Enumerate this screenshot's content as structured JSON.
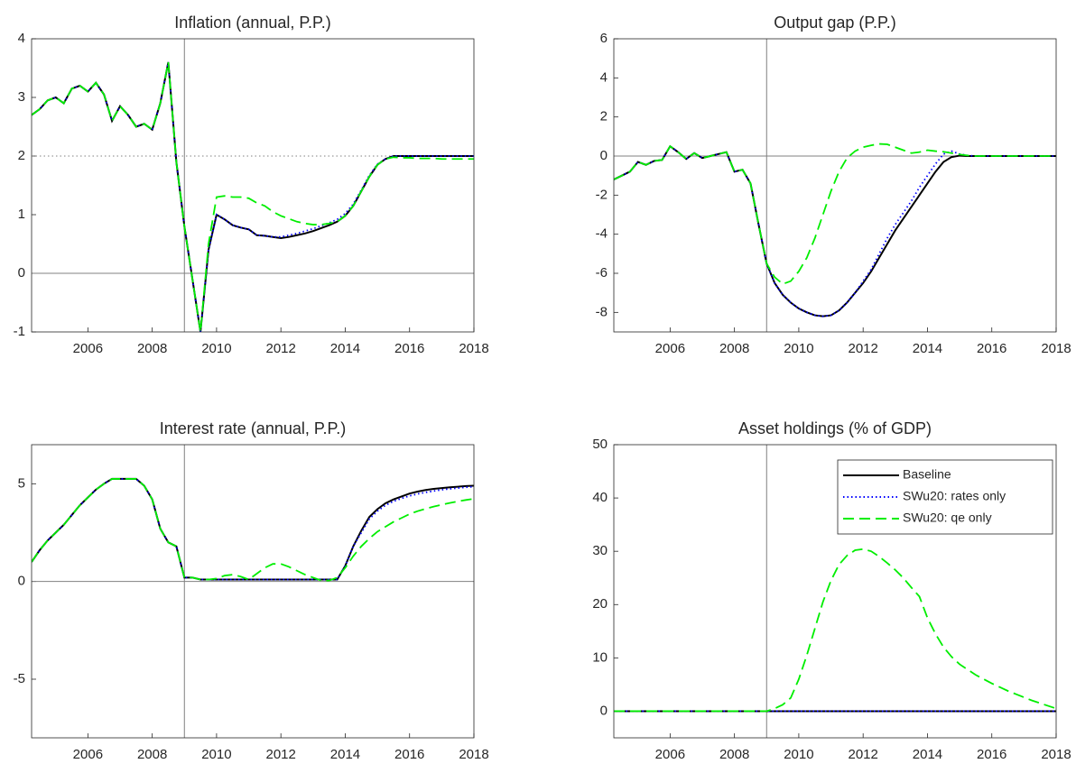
{
  "chart_data": [
    {
      "type": "line",
      "title": "Inflation (annual, P.P.)",
      "x": [
        2004.25,
        2004.5,
        2004.75,
        2005,
        2005.25,
        2005.5,
        2005.75,
        2006,
        2006.25,
        2006.5,
        2006.75,
        2007,
        2007.25,
        2007.5,
        2007.75,
        2008,
        2008.25,
        2008.5,
        2008.75,
        2009,
        2009.25,
        2009.5,
        2009.75,
        2010,
        2010.25,
        2010.5,
        2010.75,
        2011,
        2011.25,
        2011.5,
        2011.75,
        2012,
        2012.25,
        2012.5,
        2012.75,
        2013,
        2013.25,
        2013.5,
        2013.75,
        2014,
        2014.25,
        2014.5,
        2014.75,
        2015,
        2015.25,
        2015.5,
        2015.75,
        2016,
        2016.25,
        2016.5,
        2016.75,
        2017,
        2017.25,
        2017.5,
        2017.75,
        2018
      ],
      "xlim": [
        2004.25,
        2018
      ],
      "xticks": [
        2006,
        2008,
        2010,
        2012,
        2014,
        2016,
        2018
      ],
      "ylim": [
        -1,
        4
      ],
      "yticks": [
        -1,
        0,
        1,
        2,
        3,
        4
      ],
      "vline": 2009,
      "hlines": [
        {
          "value": 0,
          "style": "solid"
        },
        {
          "value": 2,
          "style": "dotted"
        }
      ],
      "series": [
        {
          "color": "#000000",
          "style": "solid",
          "values": [
            2.7,
            2.8,
            2.95,
            3.0,
            2.9,
            3.15,
            3.2,
            3.1,
            3.25,
            3.05,
            2.6,
            2.85,
            2.7,
            2.5,
            2.55,
            2.45,
            2.9,
            3.6,
            1.9,
            0.8,
            -0.1,
            -1.0,
            0.4,
            1.0,
            0.92,
            0.82,
            0.78,
            0.75,
            0.65,
            0.64,
            0.62,
            0.6,
            0.62,
            0.65,
            0.68,
            0.72,
            0.77,
            0.82,
            0.88,
            0.98,
            1.15,
            1.4,
            1.65,
            1.85,
            1.95,
            2.0,
            2.0,
            2.0,
            2.0,
            2.0,
            2.0,
            2.0,
            2.0,
            2.0,
            2.0,
            2.0
          ]
        },
        {
          "color": "#0000ff",
          "style": "dotted",
          "values": [
            2.7,
            2.8,
            2.95,
            3.0,
            2.9,
            3.15,
            3.2,
            3.1,
            3.25,
            3.05,
            2.6,
            2.85,
            2.7,
            2.5,
            2.55,
            2.45,
            2.9,
            3.6,
            1.9,
            0.8,
            -0.1,
            -1.0,
            0.4,
            1.0,
            0.92,
            0.82,
            0.78,
            0.75,
            0.65,
            0.64,
            0.62,
            0.62,
            0.65,
            0.68,
            0.72,
            0.76,
            0.81,
            0.86,
            0.92,
            1.02,
            1.18,
            1.42,
            1.67,
            1.86,
            1.95,
            2.0,
            2.0,
            2.0,
            2.0,
            2.0,
            2.0,
            2.0,
            2.0,
            2.0,
            2.0,
            2.0
          ]
        },
        {
          "color": "#00ee00",
          "style": "dashed",
          "values": [
            2.7,
            2.8,
            2.95,
            3.0,
            2.9,
            3.15,
            3.2,
            3.1,
            3.25,
            3.05,
            2.6,
            2.85,
            2.7,
            2.5,
            2.55,
            2.45,
            2.9,
            3.6,
            1.9,
            0.8,
            -0.1,
            -1.0,
            0.5,
            1.3,
            1.32,
            1.3,
            1.3,
            1.28,
            1.2,
            1.15,
            1.05,
            0.98,
            0.93,
            0.88,
            0.85,
            0.83,
            0.83,
            0.85,
            0.88,
            0.98,
            1.15,
            1.4,
            1.65,
            1.85,
            1.95,
            1.98,
            1.97,
            1.97,
            1.96,
            1.96,
            1.96,
            1.95,
            1.95,
            1.95,
            1.95,
            1.95
          ]
        }
      ]
    },
    {
      "type": "line",
      "title": "Output gap (P.P.)",
      "x": [
        2004.25,
        2004.5,
        2004.75,
        2005,
        2005.25,
        2005.5,
        2005.75,
        2006,
        2006.25,
        2006.5,
        2006.75,
        2007,
        2007.25,
        2007.5,
        2007.75,
        2008,
        2008.25,
        2008.5,
        2008.75,
        2009,
        2009.25,
        2009.5,
        2009.75,
        2010,
        2010.25,
        2010.5,
        2010.75,
        2011,
        2011.25,
        2011.5,
        2011.75,
        2012,
        2012.25,
        2012.5,
        2012.75,
        2013,
        2013.25,
        2013.5,
        2013.75,
        2014,
        2014.25,
        2014.5,
        2014.75,
        2015,
        2015.25,
        2015.5,
        2015.75,
        2016,
        2016.25,
        2016.5,
        2016.75,
        2017,
        2017.25,
        2017.5,
        2017.75,
        2018
      ],
      "xlim": [
        2004.25,
        2018
      ],
      "xticks": [
        2006,
        2008,
        2010,
        2012,
        2014,
        2016,
        2018
      ],
      "ylim": [
        -9,
        6
      ],
      "yticks": [
        -8,
        -6,
        -4,
        -2,
        0,
        2,
        4,
        6
      ],
      "vline": 2009,
      "hlines": [
        {
          "value": 0,
          "style": "solid"
        }
      ],
      "series": [
        {
          "color": "#000000",
          "style": "solid",
          "values": [
            -1.2,
            -1.0,
            -0.8,
            -0.3,
            -0.45,
            -0.25,
            -0.2,
            0.5,
            0.2,
            -0.15,
            0.15,
            -0.1,
            0.0,
            0.1,
            0.2,
            -0.8,
            -0.7,
            -1.4,
            -3.5,
            -5.5,
            -6.5,
            -7.1,
            -7.5,
            -7.8,
            -8.0,
            -8.15,
            -8.2,
            -8.15,
            -7.9,
            -7.5,
            -7.0,
            -6.5,
            -5.9,
            -5.2,
            -4.5,
            -3.8,
            -3.2,
            -2.6,
            -2.0,
            -1.4,
            -0.8,
            -0.3,
            -0.05,
            0.02,
            0,
            0,
            0,
            0,
            0,
            0,
            0,
            0,
            0,
            0,
            0,
            0
          ]
        },
        {
          "color": "#0000ff",
          "style": "dotted",
          "values": [
            -1.2,
            -1.0,
            -0.8,
            -0.3,
            -0.45,
            -0.25,
            -0.2,
            0.5,
            0.2,
            -0.15,
            0.15,
            -0.1,
            0.0,
            0.1,
            0.2,
            -0.8,
            -0.7,
            -1.4,
            -3.5,
            -5.5,
            -6.5,
            -7.1,
            -7.5,
            -7.8,
            -8.0,
            -8.15,
            -8.2,
            -8.15,
            -7.9,
            -7.5,
            -7.0,
            -6.4,
            -5.8,
            -5.0,
            -4.2,
            -3.5,
            -2.9,
            -2.3,
            -1.6,
            -1.0,
            -0.4,
            0.1,
            0.25,
            0.1,
            0.03,
            0,
            0,
            0,
            0,
            0,
            0,
            0,
            0,
            0,
            0,
            0
          ]
        },
        {
          "color": "#00ee00",
          "style": "dashed",
          "values": [
            -1.2,
            -1.0,
            -0.8,
            -0.3,
            -0.45,
            -0.25,
            -0.2,
            0.5,
            0.2,
            -0.15,
            0.15,
            -0.1,
            0.0,
            0.1,
            0.2,
            -0.8,
            -0.7,
            -1.4,
            -3.5,
            -5.5,
            -6.2,
            -6.55,
            -6.4,
            -5.9,
            -5.2,
            -4.2,
            -3.0,
            -1.8,
            -0.8,
            -0.1,
            0.25,
            0.45,
            0.55,
            0.62,
            0.6,
            0.45,
            0.3,
            0.15,
            0.2,
            0.3,
            0.25,
            0.22,
            0.15,
            0.08,
            0.03,
            0,
            0,
            0,
            0,
            0,
            0,
            0,
            0,
            0,
            0,
            0
          ]
        }
      ]
    },
    {
      "type": "line",
      "title": "Interest rate (annual, P.P.)",
      "x": [
        2004.25,
        2004.5,
        2004.75,
        2005,
        2005.25,
        2005.5,
        2005.75,
        2006,
        2006.25,
        2006.5,
        2006.75,
        2007,
        2007.25,
        2007.5,
        2007.75,
        2008,
        2008.25,
        2008.5,
        2008.75,
        2009,
        2009.25,
        2009.5,
        2009.75,
        2010,
        2010.25,
        2010.5,
        2010.75,
        2011,
        2011.25,
        2011.5,
        2011.75,
        2012,
        2012.25,
        2012.5,
        2012.75,
        2013,
        2013.25,
        2013.5,
        2013.75,
        2014,
        2014.25,
        2014.5,
        2014.75,
        2015,
        2015.25,
        2015.5,
        2015.75,
        2016,
        2016.25,
        2016.5,
        2016.75,
        2017,
        2017.25,
        2017.5,
        2017.75,
        2018
      ],
      "xlim": [
        2004.25,
        2018
      ],
      "xticks": [
        2006,
        2008,
        2010,
        2012,
        2014,
        2016,
        2018
      ],
      "ylim": [
        -8,
        7
      ],
      "yticks": [
        -5,
        0,
        5
      ],
      "vline": 2009,
      "hlines": [
        {
          "value": 0,
          "style": "solid"
        }
      ],
      "series": [
        {
          "color": "#000000",
          "style": "solid",
          "values": [
            1.0,
            1.6,
            2.1,
            2.5,
            2.9,
            3.4,
            3.9,
            4.3,
            4.7,
            5.0,
            5.25,
            5.25,
            5.25,
            5.25,
            4.9,
            4.2,
            2.7,
            2.0,
            1.8,
            0.2,
            0.2,
            0.1,
            0.1,
            0.1,
            0.1,
            0.1,
            0.1,
            0.1,
            0.1,
            0.1,
            0.1,
            0.1,
            0.1,
            0.1,
            0.1,
            0.1,
            0.1,
            0.1,
            0.1,
            0.8,
            1.8,
            2.6,
            3.3,
            3.7,
            4.0,
            4.2,
            4.35,
            4.5,
            4.6,
            4.68,
            4.74,
            4.78,
            4.82,
            4.85,
            4.88,
            4.9
          ]
        },
        {
          "color": "#0000ff",
          "style": "dotted",
          "values": [
            1.0,
            1.6,
            2.1,
            2.5,
            2.9,
            3.4,
            3.9,
            4.3,
            4.7,
            5.0,
            5.25,
            5.25,
            5.25,
            5.25,
            4.9,
            4.2,
            2.7,
            2.0,
            1.8,
            0.2,
            0.2,
            0.1,
            0.1,
            0.1,
            0.1,
            0.1,
            0.1,
            0.1,
            0.1,
            0.1,
            0.1,
            0.1,
            0.1,
            0.1,
            0.1,
            0.1,
            0.1,
            0.1,
            0.1,
            0.8,
            1.8,
            2.5,
            3.2,
            3.6,
            3.9,
            4.1,
            4.25,
            4.38,
            4.48,
            4.56,
            4.63,
            4.69,
            4.74,
            4.78,
            4.82,
            4.85
          ]
        },
        {
          "color": "#00ee00",
          "style": "dashed",
          "values": [
            1.0,
            1.6,
            2.1,
            2.5,
            2.9,
            3.4,
            3.9,
            4.3,
            4.7,
            5.0,
            5.25,
            5.25,
            5.25,
            5.25,
            4.9,
            4.2,
            2.7,
            2.0,
            1.8,
            0.2,
            0.2,
            0.1,
            0.1,
            0.15,
            0.3,
            0.35,
            0.25,
            0.1,
            0.4,
            0.7,
            0.9,
            0.9,
            0.75,
            0.55,
            0.35,
            0.2,
            0.05,
            0.05,
            0.2,
            0.7,
            1.3,
            1.8,
            2.2,
            2.55,
            2.8,
            3.05,
            3.25,
            3.45,
            3.6,
            3.72,
            3.83,
            3.93,
            4.02,
            4.1,
            4.17,
            4.23
          ]
        }
      ]
    },
    {
      "type": "line",
      "title": "Asset holdings (% of GDP)",
      "x": [
        2004.25,
        2004.5,
        2004.75,
        2005,
        2005.25,
        2005.5,
        2005.75,
        2006,
        2006.25,
        2006.5,
        2006.75,
        2007,
        2007.25,
        2007.5,
        2007.75,
        2008,
        2008.25,
        2008.5,
        2008.75,
        2009,
        2009.25,
        2009.5,
        2009.75,
        2010,
        2010.25,
        2010.5,
        2010.75,
        2011,
        2011.25,
        2011.5,
        2011.75,
        2012,
        2012.25,
        2012.5,
        2012.75,
        2013,
        2013.25,
        2013.5,
        2013.75,
        2014,
        2014.25,
        2014.5,
        2014.75,
        2015,
        2015.25,
        2015.5,
        2015.75,
        2016,
        2016.25,
        2016.5,
        2016.75,
        2017,
        2017.25,
        2017.5,
        2017.75,
        2018
      ],
      "xlim": [
        2004.25,
        2018
      ],
      "xticks": [
        2006,
        2008,
        2010,
        2012,
        2014,
        2016,
        2018
      ],
      "ylim": [
        -5,
        50
      ],
      "yticks": [
        0,
        10,
        20,
        30,
        40,
        50
      ],
      "vline": 2009,
      "legend": "upper right",
      "series": [
        {
          "name": "Baseline",
          "color": "#000000",
          "style": "solid",
          "values": [
            0,
            0,
            0,
            0,
            0,
            0,
            0,
            0,
            0,
            0,
            0,
            0,
            0,
            0,
            0,
            0,
            0,
            0,
            0,
            0,
            0,
            0,
            0,
            0,
            0,
            0,
            0,
            0,
            0,
            0,
            0,
            0,
            0,
            0,
            0,
            0,
            0,
            0,
            0,
            0,
            0,
            0,
            0,
            0,
            0,
            0,
            0,
            0,
            0,
            0,
            0,
            0,
            0,
            0,
            0,
            0
          ]
        },
        {
          "name": "SWu20: rates only",
          "color": "#0000ff",
          "style": "dotted",
          "values": [
            0,
            0,
            0,
            0,
            0,
            0,
            0,
            0,
            0,
            0,
            0,
            0,
            0,
            0,
            0,
            0,
            0,
            0,
            0,
            0,
            0,
            0,
            0,
            0,
            0,
            0,
            0,
            0,
            0,
            0,
            0,
            0,
            0,
            0,
            0,
            0,
            0,
            0,
            0,
            0,
            0,
            0,
            0,
            0,
            0,
            0,
            0,
            0,
            0,
            0,
            0,
            0,
            0,
            0,
            0,
            0
          ]
        },
        {
          "name": "SWu20: qe only",
          "color": "#00ee00",
          "style": "dashed",
          "values": [
            0,
            0,
            0,
            0,
            0,
            0,
            0,
            0,
            0,
            0,
            0,
            0,
            0,
            0,
            0,
            0,
            0,
            0,
            0,
            0,
            0.5,
            1.2,
            2.5,
            6,
            10.5,
            15.5,
            20.5,
            24.5,
            27.5,
            29.2,
            30.2,
            30.4,
            30.0,
            29.0,
            27.8,
            26.5,
            25.0,
            23.2,
            21.5,
            17.5,
            14.5,
            12.0,
            10.2,
            8.8,
            7.8,
            6.8,
            6.0,
            5.2,
            4.5,
            3.8,
            3.2,
            2.6,
            2.0,
            1.5,
            1.0,
            0.5
          ]
        }
      ]
    }
  ]
}
